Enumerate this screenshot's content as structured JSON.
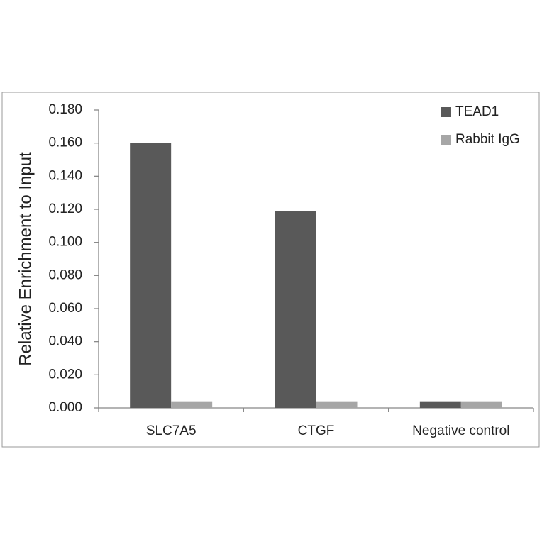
{
  "chart_data": {
    "type": "bar",
    "ylabel": "Relative Enrichment to Input",
    "categories": [
      "SLC7A5",
      "CTGF",
      "Negative control"
    ],
    "series": [
      {
        "name": "TEAD1",
        "color": "#595959",
        "values": [
          0.16,
          0.119,
          0.004
        ]
      },
      {
        "name": "Rabbit IgG",
        "color": "#a6a6a6",
        "values": [
          0.004,
          0.004,
          0.004
        ]
      }
    ],
    "ylim": [
      0,
      0.18
    ],
    "yticks": [
      {
        "value": 0,
        "label": "0.000"
      },
      {
        "value": 0.02,
        "label": "0.020"
      },
      {
        "value": 0.04,
        "label": "0.040"
      },
      {
        "value": 0.06,
        "label": "0.060"
      },
      {
        "value": 0.08,
        "label": "0.080"
      },
      {
        "value": 0.1,
        "label": "0.100"
      },
      {
        "value": 0.12,
        "label": "0.120"
      },
      {
        "value": 0.14,
        "label": "0.140"
      },
      {
        "value": 0.16,
        "label": "0.160"
      },
      {
        "value": 0.18,
        "label": "0.180"
      }
    ],
    "grid": false,
    "legend": "upper-right"
  }
}
